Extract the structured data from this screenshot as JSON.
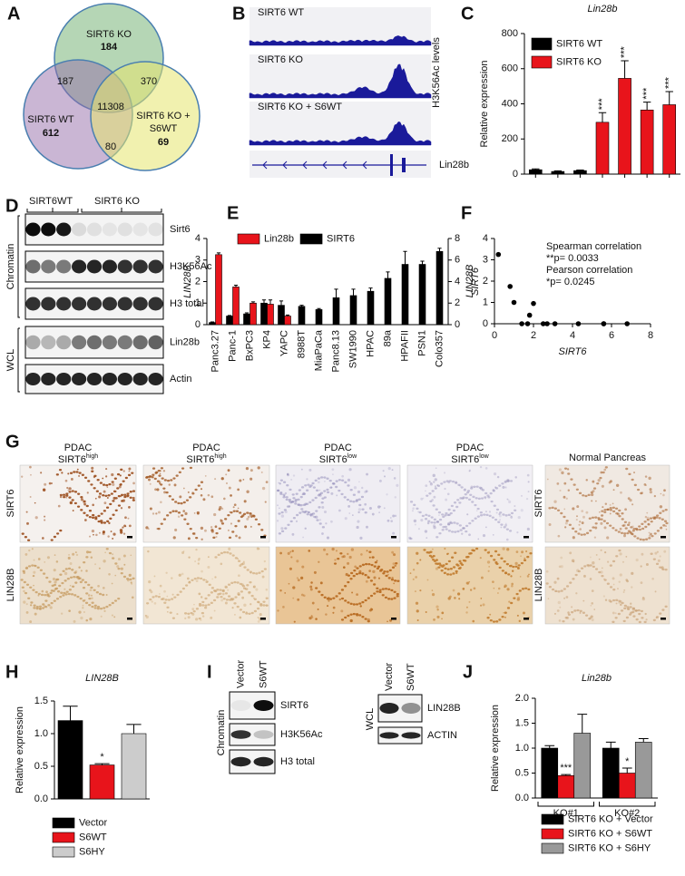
{
  "panel_labels": [
    "A",
    "B",
    "C",
    "D",
    "E",
    "F",
    "G",
    "H",
    "I",
    "J"
  ],
  "venn": {
    "sets": [
      {
        "label": [
          "SIRT6 KO"
        ],
        "count": 184
      },
      {
        "label": [
          "SIRT6 WT"
        ],
        "count": 612
      },
      {
        "label": [
          "SIRT6 KO +",
          "S6WT"
        ],
        "count": 69
      }
    ],
    "overlaps": {
      "ko_wt": 187,
      "ko_s6wt": 370,
      "wt_s6wt": 80,
      "all": 11308
    }
  },
  "tracks": {
    "samples": [
      "SIRT6 WT",
      "SIRT6 KO",
      "SIRT6 KO + S6WT"
    ],
    "axis_label": "H3K56Ac levels",
    "gene": "Lin28b"
  },
  "blot_d": {
    "groups": [
      "SIRT6WT",
      "SIRT6 KO"
    ],
    "fractions": [
      "Chromatin",
      "WCL"
    ],
    "rows": [
      "Sirt6",
      "H3K56Ac",
      "H3 total",
      "Lin28b",
      "Actin"
    ]
  },
  "histology": {
    "columns": [
      {
        "line1": "PDAC",
        "gene": "SIRT6",
        "level": "high"
      },
      {
        "line1": "PDAC",
        "gene": "SIRT6",
        "level": "high"
      },
      {
        "line1": "PDAC",
        "gene": "SIRT6",
        "level": "low"
      },
      {
        "line1": "PDAC",
        "gene": "SIRT6",
        "level": "low"
      },
      {
        "line1": "Normal Pancreas"
      }
    ],
    "rows": [
      "SIRT6",
      "LIN28B"
    ],
    "normal_rows": [
      "SIRT6",
      "LIN28B"
    ]
  },
  "blot_i": {
    "chromatin": {
      "lanes": [
        "Vector",
        "S6WT"
      ],
      "fraction": "Chromatin",
      "rows": [
        "SIRT6",
        "H3K56Ac",
        "H3 total"
      ]
    },
    "wcl": {
      "lanes": [
        "Vector",
        "S6WT"
      ],
      "fraction": "WCL",
      "rows": [
        "LIN28B",
        "ACTIN"
      ]
    }
  },
  "chart_data": [
    {
      "type": "bar",
      "title": "Lin28b",
      "y_label": "Relative expression",
      "categories": [
        null,
        null,
        null,
        null,
        null,
        null,
        null
      ],
      "ylim": [
        0,
        800
      ],
      "yticks": [
        0,
        200,
        400,
        600,
        800
      ],
      "legend": "upper left",
      "series": [
        {
          "name": "SIRT6 WT",
          "color": "#000000",
          "values": [
            25,
            15,
            20,
            null,
            null,
            null,
            null
          ],
          "errors": [
            5,
            4,
            3,
            null,
            null,
            null,
            null
          ]
        },
        {
          "name": "SIRT6 KO",
          "color": "#e8141b",
          "values": [
            null,
            null,
            null,
            295,
            545,
            365,
            395
          ],
          "errors": [
            null,
            null,
            null,
            55,
            100,
            45,
            75
          ],
          "significance": [
            null,
            null,
            null,
            "***",
            "***",
            "***",
            "***"
          ]
        }
      ]
    },
    {
      "type": "bar",
      "y_label": "LIN28B",
      "y2_label": "SIRT6",
      "categories": [
        "Panc3.27",
        "Panc-1",
        "BxPC3",
        "KP4",
        "YAPC",
        "8988T",
        "MiaPaCa",
        "Panc8.13",
        "SW1990",
        "HPAC",
        "89a",
        "HPAFII",
        "PSN1",
        "Colo357"
      ],
      "ylim": [
        0,
        4
      ],
      "yticks": [
        0,
        1,
        2,
        3,
        4
      ],
      "y2lim": [
        0,
        8
      ],
      "y2ticks": [
        0,
        2,
        4,
        6,
        8
      ],
      "legend": "upper left",
      "series": [
        {
          "name": "Lin28b",
          "color": "#e8141b",
          "values": [
            3.25,
            1.75,
            1.0,
            0.95,
            0.4,
            null,
            null,
            null,
            null,
            null,
            null,
            null,
            null,
            null
          ],
          "errors": [
            0.08,
            0.08,
            0.06,
            0.2,
            0.05,
            null,
            null,
            null,
            null,
            null,
            null,
            null,
            null,
            null
          ]
        },
        {
          "name": "SIRT6",
          "color": "#000000",
          "axis": "y2",
          "values": [
            0.2,
            0.8,
            1.0,
            2.0,
            1.8,
            1.7,
            1.4,
            2.5,
            2.7,
            3.1,
            4.3,
            5.6,
            5.6,
            6.8
          ],
          "errors": [
            0.05,
            0.05,
            0.1,
            0.3,
            0.4,
            0.1,
            0.1,
            0.8,
            0.6,
            0.3,
            0.6,
            1.2,
            0.3,
            0.3
          ]
        }
      ]
    },
    {
      "type": "scatter",
      "x_label": "SIRT6",
      "y_label": "LIN28B",
      "x": [
        0.2,
        0.8,
        1.0,
        2.0,
        1.8,
        1.7,
        1.4,
        2.5,
        2.7,
        3.1,
        4.3,
        5.6,
        5.6,
        6.8
      ],
      "y": [
        3.25,
        1.75,
        1.0,
        0.95,
        0.4,
        0,
        0,
        0,
        0,
        0,
        0,
        0,
        0,
        0
      ],
      "xlim": [
        0,
        8
      ],
      "xticks": [
        0,
        2,
        4,
        6,
        8
      ],
      "ylim": [
        0,
        4
      ],
      "yticks": [
        0,
        1,
        2,
        3,
        4
      ],
      "color": "#000000",
      "annotations": [
        "Spearman correlation",
        "**p= 0.0033",
        "Pearson correlation",
        "*p= 0.0245"
      ]
    },
    {
      "type": "bar",
      "title": "LIN28B",
      "y_label": "Relative expression",
      "categories": [
        null,
        null,
        null
      ],
      "ylim": [
        0,
        1.5
      ],
      "yticks": [
        {
          "value": 0,
          "label": "0.0"
        },
        0.5,
        {
          "value": 1,
          "label": "1.0"
        },
        1.5
      ],
      "legend": "below",
      "series": [
        {
          "name": "Vector",
          "color": "#000000",
          "values": [
            1.2,
            null,
            null
          ],
          "errors": [
            0.22,
            null,
            null
          ]
        },
        {
          "name": "S6WT",
          "color": "#e8141b",
          "values": [
            null,
            0.52,
            null
          ],
          "errors": [
            null,
            0.02,
            null
          ],
          "significance": [
            null,
            "*",
            null
          ]
        },
        {
          "name": "S6HY",
          "color": "#cccccc",
          "values": [
            null,
            null,
            1.0
          ],
          "errors": [
            null,
            null,
            0.14
          ]
        }
      ]
    },
    {
      "type": "bar",
      "title": "Lin28b",
      "y_label": "Relative expression",
      "categories": [
        "KO#1",
        "KO#2"
      ],
      "ylim": [
        0,
        2
      ],
      "yticks": [
        {
          "value": 0,
          "label": "0.0"
        },
        0.5,
        {
          "value": 1,
          "label": "1.0"
        },
        1.5,
        {
          "value": 2,
          "label": "2.0"
        }
      ],
      "legend": "below",
      "series": [
        {
          "name": "SIRT6 KO + Vector",
          "color": "#000000",
          "values": [
            1.0,
            1.0
          ],
          "errors": [
            0.05,
            0.12
          ]
        },
        {
          "name": "SIRT6 KO + S6WT",
          "color": "#e8141b",
          "values": [
            0.45,
            0.5
          ],
          "errors": [
            0.02,
            0.1
          ],
          "significance": [
            "***",
            "*"
          ]
        },
        {
          "name": "SIRT6 KO + S6HY",
          "color": "#999999",
          "values": [
            1.3,
            1.12
          ],
          "errors": [
            0.38,
            0.07
          ]
        }
      ]
    }
  ]
}
